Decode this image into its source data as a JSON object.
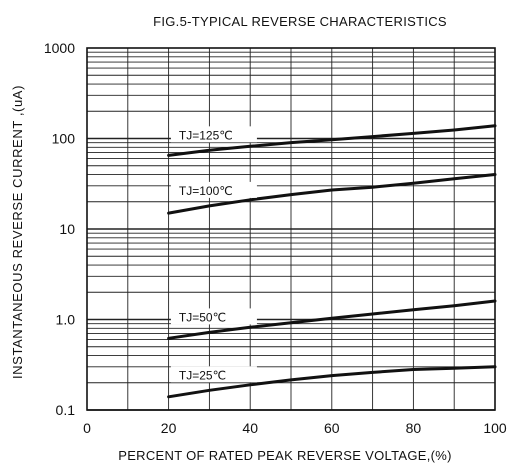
{
  "chart_data": {
    "type": "line",
    "title": "FIG.5-TYPICAL REVERSE CHARACTERISTICS",
    "xlabel": "PERCENT OF RATED PEAK REVERSE VOLTAGE,(%)",
    "ylabel": "INSTANTANEOUS REVERSE CURRENT ,(uA)",
    "x_scale": "linear",
    "y_scale": "log",
    "xlim": [
      0,
      100
    ],
    "ylim": [
      0.1,
      1000
    ],
    "x_ticks": [
      "0",
      "20",
      "40",
      "60",
      "80",
      "100"
    ],
    "x_tick_values": [
      0,
      20,
      40,
      60,
      80,
      100
    ],
    "y_ticks": [
      "0.1",
      "1.0",
      "10",
      "100",
      "1000"
    ],
    "y_tick_values": [
      0.1,
      1,
      10,
      100,
      1000
    ],
    "grid": true,
    "legend": "none",
    "series": [
      {
        "name": "TJ=125℃",
        "x": [
          20,
          30,
          40,
          50,
          60,
          70,
          80,
          90,
          100
        ],
        "y": [
          65,
          74,
          82,
          90,
          97,
          105,
          114,
          124,
          138
        ]
      },
      {
        "name": "TJ=100℃",
        "x": [
          20,
          30,
          40,
          50,
          60,
          70,
          80,
          90,
          100
        ],
        "y": [
          15,
          18,
          21,
          24,
          27,
          29,
          32,
          36,
          40
        ]
      },
      {
        "name": "TJ=50℃",
        "x": [
          20,
          30,
          40,
          50,
          60,
          70,
          80,
          90,
          100
        ],
        "y": [
          0.62,
          0.72,
          0.82,
          0.92,
          1.03,
          1.15,
          1.28,
          1.42,
          1.6
        ]
      },
      {
        "name": "TJ=25℃",
        "x": [
          20,
          30,
          40,
          50,
          60,
          70,
          80,
          90,
          100
        ],
        "y": [
          0.14,
          0.165,
          0.19,
          0.215,
          0.24,
          0.26,
          0.28,
          0.29,
          0.3
        ]
      }
    ],
    "line_color": "#111111",
    "grid_color": "#222222"
  }
}
